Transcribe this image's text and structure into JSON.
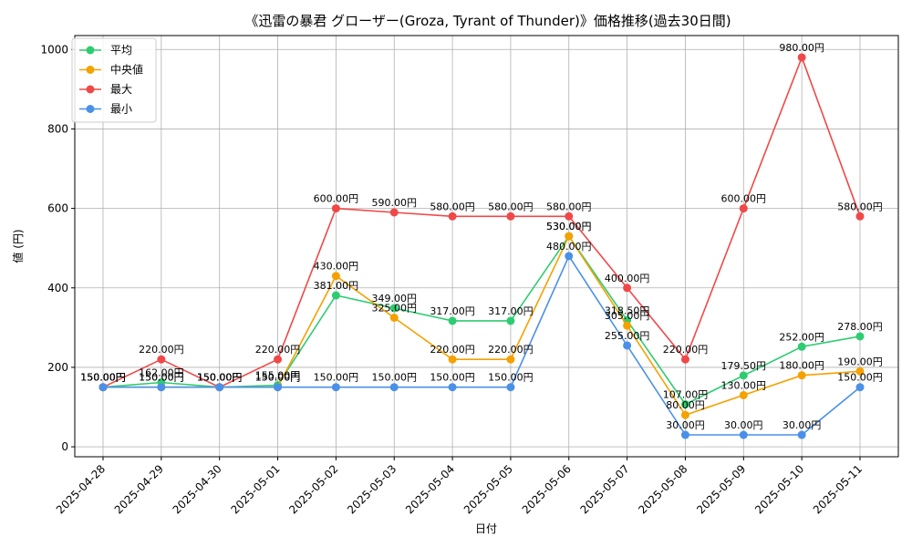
{
  "chart_data": {
    "type": "line",
    "title": "《迅雷の暴君 グローザー(Groza, Tyrant of Thunder)》価格推移(過去30日間)",
    "xlabel": "日付",
    "ylabel": "値 (円)",
    "ylim": [
      -25,
      1035
    ],
    "yticks": [
      0,
      200,
      400,
      600,
      800,
      1000
    ],
    "grid": true,
    "legend_position": "top-left",
    "categories": [
      "2025-04-28",
      "2025-04-29",
      "2025-04-30",
      "2025-05-01",
      "2025-05-02",
      "2025-05-03",
      "2025-05-04",
      "2025-05-05",
      "2025-05-06",
      "2025-05-07",
      "2025-05-08",
      "2025-05-09",
      "2025-05-10",
      "2025-05-11"
    ],
    "series": [
      {
        "name": "平均",
        "color": "#2ecc71",
        "values": [
          150,
          162,
          150,
          155,
          381,
          349,
          317,
          317,
          530,
          318.5,
          107,
          179.5,
          252,
          278
        ],
        "labels": [
          "150.00円",
          "162.00円",
          "150.00円",
          "155.00円",
          "381.00円",
          "349.00円",
          "317.00円",
          "317.00円",
          "530.00円",
          "318.50円",
          "107.00円",
          "179.50円",
          "252.00円",
          "278.00円"
        ]
      },
      {
        "name": "中央値",
        "color": "#f5a100",
        "values": [
          150,
          150,
          150,
          150,
          430,
          325,
          220,
          220,
          530,
          305,
          80,
          130,
          180,
          190
        ],
        "labels": [
          "150.00円",
          "150.00円",
          "150.00円",
          "150.00円",
          "430.00円",
          "325.00円",
          "220.00円",
          "220.00円",
          "530.00円",
          "305.00円",
          "80.00円",
          "130.00円",
          "180.00円",
          "190.00円"
        ]
      },
      {
        "name": "最大",
        "color": "#f04848",
        "values": [
          150,
          220,
          150,
          220,
          600,
          590,
          580,
          580,
          580,
          400,
          220,
          600,
          980,
          580
        ],
        "labels": [
          "150.00円",
          "220.00円",
          "150.00円",
          "220.00円",
          "600.00円",
          "590.00円",
          "580.00円",
          "580.00円",
          "580.00円",
          "400.00円",
          "220.00円",
          "600.00円",
          "980.00円",
          "580.00円"
        ]
      },
      {
        "name": "最小",
        "color": "#4a90e8",
        "values": [
          150,
          150,
          150,
          150,
          150,
          150,
          150,
          150,
          480,
          255,
          30,
          30,
          30,
          150
        ],
        "labels": [
          "150.00円",
          "150.00円",
          "150.00円",
          "150.00円",
          "150.00円",
          "150.00円",
          "150.00円",
          "150.00円",
          "480.00円",
          "255.00円",
          "30.00円",
          "30.00円",
          "30.00円",
          "150.00円"
        ]
      }
    ]
  }
}
